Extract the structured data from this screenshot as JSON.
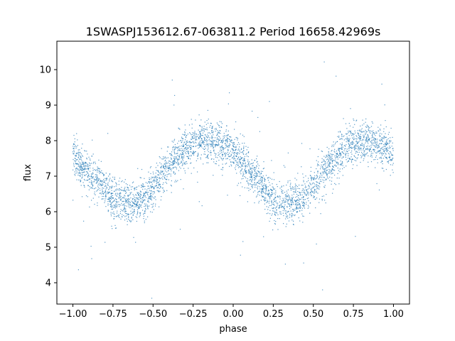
{
  "chart_data": {
    "type": "scatter",
    "title": "1SWASPJ153612.67-063811.2 Period 16658.42969s",
    "xlabel": "phase",
    "ylabel": "flux",
    "xlim": [
      -1.1,
      1.1
    ],
    "ylim": [
      3.4,
      10.8
    ],
    "x_ticks": [
      -1.0,
      -0.75,
      -0.5,
      -0.25,
      0.0,
      0.25,
      0.5,
      0.75,
      1.0
    ],
    "x_tick_labels": [
      "−1.00",
      "−0.75",
      "−0.50",
      "−0.25",
      "0.00",
      "0.25",
      "0.50",
      "0.75",
      "1.00"
    ],
    "y_ticks": [
      4,
      5,
      6,
      7,
      8,
      9,
      10
    ],
    "y_tick_labels": [
      "4",
      "5",
      "6",
      "7",
      "8",
      "9",
      "10"
    ],
    "grid": false,
    "point_color": "#1f77b4",
    "series": [
      {
        "x": [
          -1.0,
          -0.95,
          -0.9,
          -0.85,
          -0.8,
          -0.75,
          -0.7,
          -0.65,
          -0.6,
          -0.55,
          -0.5,
          -0.45,
          -0.4,
          -0.35,
          -0.3,
          -0.25,
          -0.2,
          -0.15,
          -0.1,
          -0.05,
          0.0,
          0.05,
          0.1,
          0.15,
          0.2,
          0.25,
          0.3,
          0.35,
          0.4,
          0.45,
          0.5,
          0.55,
          0.6,
          0.65,
          0.7,
          0.75,
          0.8,
          0.85,
          0.9,
          0.95,
          1.0
        ],
        "y": [
          7.6,
          7.3,
          7.1,
          6.9,
          6.6,
          6.4,
          6.3,
          6.25,
          6.3,
          6.35,
          6.6,
          7.0,
          7.3,
          7.6,
          7.75,
          7.9,
          8.0,
          8.0,
          7.95,
          7.85,
          7.7,
          7.4,
          7.1,
          6.9,
          6.6,
          6.35,
          6.25,
          6.25,
          6.3,
          6.4,
          6.65,
          7.0,
          7.3,
          7.55,
          7.75,
          7.85,
          7.95,
          8.0,
          7.9,
          7.8,
          7.6
        ]
      }
    ]
  }
}
